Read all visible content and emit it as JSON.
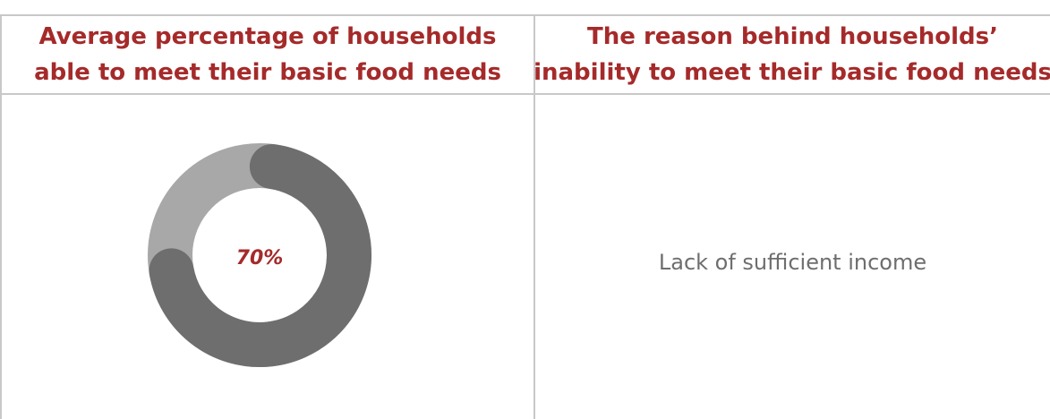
{
  "header": {
    "col1_line1": "Average percentage of households",
    "col1_line2": "able to meet their basic food needs",
    "col2_line1": "The reason behind households’",
    "col2_line2": "inability to meet their basic food needs"
  },
  "reason": "Lack of sufficient income",
  "chart_data": {
    "type": "pie",
    "variant": "donut",
    "center_label": "70%",
    "slices": [
      {
        "value": 70,
        "color": "#6e6e6e"
      },
      {
        "value": 30,
        "color": "#a8a8a8"
      }
    ]
  },
  "colors": {
    "header_text": "#a52a2a",
    "gridlines": "#c8c8c8",
    "body_text": "#6e6e6e"
  }
}
